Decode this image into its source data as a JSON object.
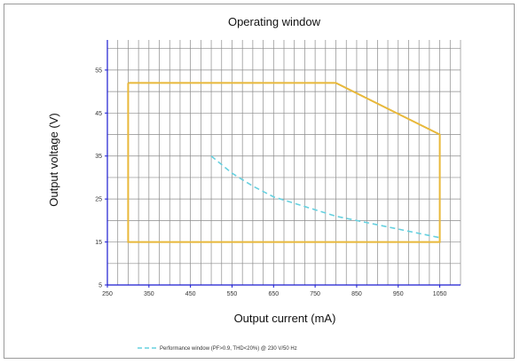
{
  "chart_data": {
    "type": "line",
    "title": "Operating window",
    "xlabel": "Output current (mA)",
    "ylabel": "Output voltage (V)",
    "xlim": [
      250,
      1100
    ],
    "ylim": [
      5,
      62
    ],
    "xticks": [
      250,
      350,
      450,
      550,
      650,
      750,
      850,
      950,
      1050
    ],
    "yticks": [
      5,
      15,
      25,
      35,
      45,
      55
    ],
    "grid": true,
    "series": [
      {
        "name": "",
        "style": "solid",
        "color": "#e8b83a",
        "x": [
          300,
          800,
          1050,
          1050,
          300,
          300
        ],
        "y": [
          52,
          52,
          40,
          15,
          15,
          52
        ]
      },
      {
        "name": "Performance window (PF>0.9, THD<20%) @ 230 V/50 Hz",
        "style": "dashed",
        "color": "#66d0df",
        "x": [
          500,
          550,
          600,
          650,
          700,
          750,
          800,
          850,
          900,
          950,
          1000,
          1050
        ],
        "y": [
          35,
          31,
          28,
          25.5,
          24,
          22.5,
          21,
          20,
          19,
          18,
          17,
          16
        ]
      }
    ],
    "legend": {
      "position": "bottom"
    }
  }
}
